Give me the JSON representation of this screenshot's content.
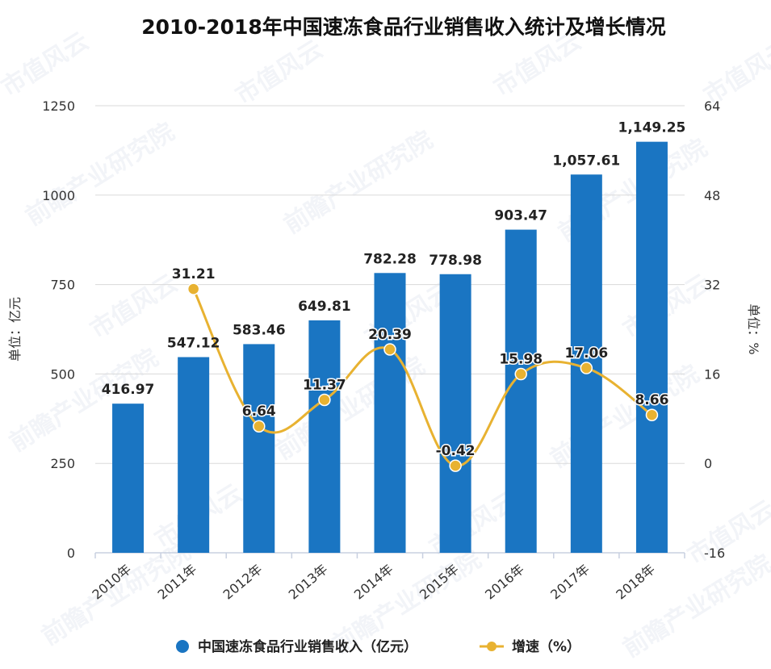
{
  "chart_data": {
    "type": "bar+line",
    "title": "2010-2018年中国速冻食品行业销售收入统计及增长情况",
    "categories": [
      "2010年",
      "2011年",
      "2012年",
      "2013年",
      "2014年",
      "2015年",
      "2016年",
      "2017年",
      "2018年"
    ],
    "series": [
      {
        "name": "中国速冻食品行业销售收入（亿元）",
        "type": "bar",
        "axis": "left",
        "color": "#1a75c2",
        "values": [
          416.97,
          547.12,
          583.46,
          649.81,
          782.28,
          778.98,
          903.47,
          1057.61,
          1149.25
        ],
        "labels": [
          "416.97",
          "547.12",
          "583.46",
          "649.81",
          "782.28",
          "778.98",
          "903.47",
          "1,057.61",
          "1,149.25"
        ]
      },
      {
        "name": "增速（%）",
        "type": "line",
        "axis": "right",
        "color": "#e8b231",
        "values": [
          null,
          31.21,
          6.64,
          11.37,
          20.39,
          -0.42,
          15.98,
          17.06,
          8.66
        ],
        "labels": [
          "",
          "31.21",
          "6.64",
          "11.37",
          "20.39",
          "-0.42",
          "15.98",
          "17.06",
          "8.66"
        ]
      }
    ],
    "y_left": {
      "label": "单位：亿元",
      "range": [
        0,
        1250
      ],
      "ticks": [
        0,
        250,
        500,
        750,
        1000,
        1250
      ],
      "tick_labels": [
        "0",
        "250",
        "500",
        "750",
        "1000",
        "1250"
      ]
    },
    "y_right": {
      "label": "单位：%",
      "range": [
        -16,
        64
      ],
      "ticks": [
        -16,
        0,
        16,
        32,
        48,
        64
      ],
      "tick_labels": [
        "-16",
        "0",
        "16",
        "32",
        "48",
        "64"
      ]
    },
    "grid": true,
    "legend_position": "bottom",
    "watermarks": [
      "市值风云",
      "前瞻产业研究院"
    ]
  }
}
